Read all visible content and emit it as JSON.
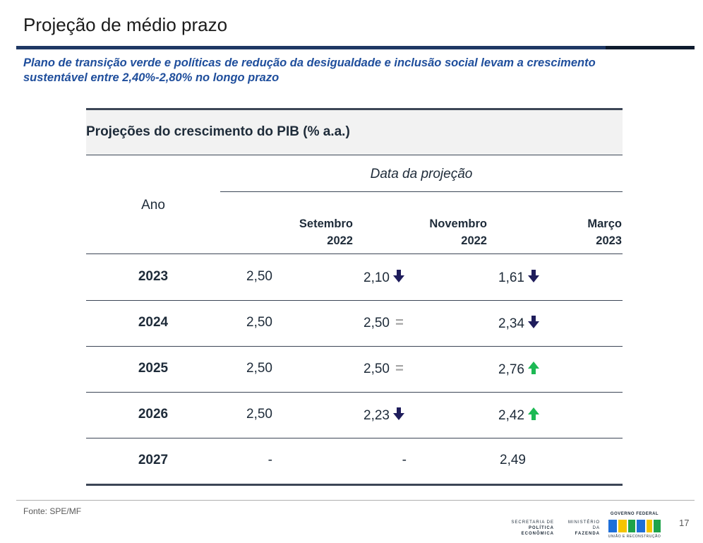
{
  "slide": {
    "title": "Projeção de médio prazo",
    "subtitle": "Plano de transição verde e políticas de redução da desigualdade e inclusão social levam a crescimento sustentável entre 2,40%-2,80% no longo prazo",
    "page_number": "17"
  },
  "table": {
    "caption": "Projeções do crescimento do PIB (% a.a.)",
    "group_label": "Data da projeção",
    "year_header": "Ano",
    "columns": [
      {
        "line1": "Setembro",
        "line2": "2022"
      },
      {
        "line1": "Novembro",
        "line2": "2022"
      },
      {
        "line1": "Março",
        "line2": "2023"
      }
    ],
    "rows": [
      {
        "year": "2023",
        "cells": [
          {
            "value": "2,50",
            "trend": "none"
          },
          {
            "value": "2,10",
            "trend": "down"
          },
          {
            "value": "1,61",
            "trend": "down"
          }
        ]
      },
      {
        "year": "2024",
        "cells": [
          {
            "value": "2,50",
            "trend": "none"
          },
          {
            "value": "2,50",
            "trend": "equal"
          },
          {
            "value": "2,34",
            "trend": "down"
          }
        ]
      },
      {
        "year": "2025",
        "cells": [
          {
            "value": "2,50",
            "trend": "none"
          },
          {
            "value": "2,50",
            "trend": "equal"
          },
          {
            "value": "2,76",
            "trend": "up"
          }
        ]
      },
      {
        "year": "2026",
        "cells": [
          {
            "value": "2,50",
            "trend": "none"
          },
          {
            "value": "2,23",
            "trend": "down"
          },
          {
            "value": "2,42",
            "trend": "up"
          }
        ]
      },
      {
        "year": "2027",
        "cells": [
          {
            "value": "-",
            "trend": "none"
          },
          {
            "value": "-",
            "trend": "none"
          },
          {
            "value": "2,49",
            "trend": "none"
          }
        ]
      }
    ],
    "indicators": {
      "down": {
        "icon": "arrow-down-icon",
        "color": "#1f1d5c"
      },
      "up": {
        "icon": "arrow-up-icon",
        "color": "#1db954"
      },
      "equal": {
        "icon": "equal-sign-icon",
        "glyph": "=",
        "color": "#a6a6a6"
      }
    }
  },
  "footer": {
    "source": "Fonte: SPE/MF",
    "logo_spe": {
      "line1": "SECRETARIA DE",
      "line2": "POLÍTICA ECONÔMICA"
    },
    "logo_mf": {
      "line1": "MINISTÉRIO DA",
      "line2": "FAZENDA"
    },
    "logo_gov": {
      "top": "GOVERNO FEDERAL",
      "bottom": "UNIÃO E RECONSTRUÇÃO"
    }
  }
}
